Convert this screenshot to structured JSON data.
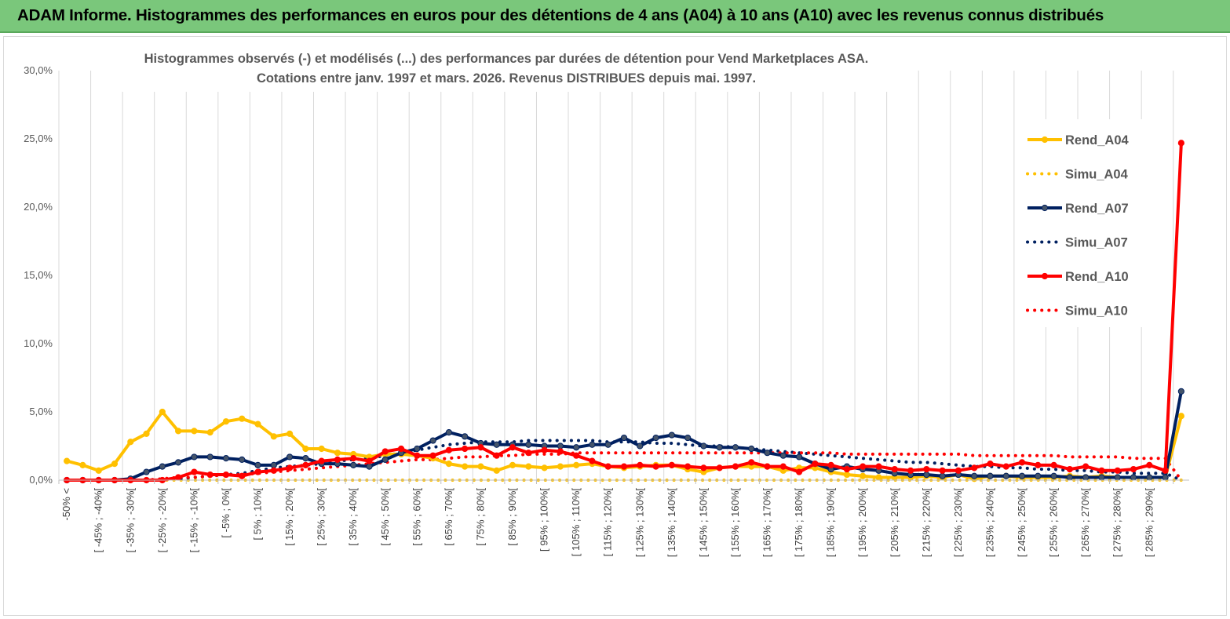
{
  "header": {
    "title": "ADAM Informe. Histogrammes des performances en euros pour des détentions de 4 ans (A04) à 10 ans (A10) avec les revenus connus distribués"
  },
  "chart_data": {
    "type": "line",
    "title_lines": [
      "Histogrammes observés (-) et modélisés (...) des performances par durées de détention pour Vend Marketplaces ASA.",
      "Cotations entre janv. 1997 et mars. 2026. Revenus DISTRIBUES depuis mai. 1997."
    ],
    "ylim": [
      0,
      30
    ],
    "y_ticks": [
      "0,0%",
      "5,0%",
      "10,0%",
      "15,0%",
      "20,0%",
      "25,0%",
      "30,0%"
    ],
    "grid": "vertical",
    "legend_position": "right",
    "x_labels": [
      "-50% <",
      "[ -45% ; -40%[",
      "[ -35% ; -30%[",
      "[ -25% ; -20%[",
      "[ -15% ; -10%[",
      "[ -5% ; 0%[",
      "[ 5% ; 10%[",
      "[ 15% ; 20%[",
      "[ 25% ; 30%[",
      "[ 35% ; 40%[",
      "[ 45% ; 50%[",
      "[ 55% ; 60%[",
      "[ 65% ; 70%[",
      "[ 75% ; 80%[",
      "[ 85% ; 90%[",
      "[ 95% ; 100%[",
      "[ 105% ; 110%[",
      "[ 115% ; 120%[",
      "[ 125% ; 130%[",
      "[ 135% ; 140%[",
      "[ 145% ; 150%[",
      "[ 155% ; 160%[",
      "[ 165% ; 170%[",
      "[ 175% ; 180%[",
      "[ 185% ; 190%[",
      "[ 195% ; 200%[",
      "[ 205% ; 210%[",
      "[ 215% ; 220%[",
      "[ 225% ; 230%[",
      "[ 235% ; 240%[",
      "[ 245% ; 250%[",
      "[ 255% ; 260%[",
      "[ 265% ; 270%[",
      "[ 275% ; 280%[",
      "[ 285% ; 290%["
    ],
    "series": [
      {
        "name": "Rend_A04",
        "color": "#ffc000",
        "style": "solid",
        "values": [
          1.4,
          1.1,
          0.7,
          1.2,
          2.8,
          3.4,
          5.0,
          3.6,
          3.6,
          3.5,
          4.3,
          4.5,
          4.1,
          3.2,
          3.4,
          2.3,
          2.3,
          2.0,
          1.9,
          1.7,
          1.9,
          1.9,
          1.8,
          1.6,
          1.2,
          1.0,
          1.0,
          0.7,
          1.1,
          1.0,
          0.9,
          1.0,
          1.1,
          1.2,
          1.0,
          0.9,
          1.0,
          1.1,
          1.1,
          0.8,
          0.6,
          0.9,
          1.0,
          1.0,
          1.0,
          0.7,
          0.9,
          0.9,
          0.6,
          0.4,
          0.3,
          0.2,
          0.2,
          0.2,
          0.3,
          0.2,
          0.4,
          0.1,
          0.3,
          0.3,
          0.2,
          0.2,
          0.2,
          0.3,
          0.2,
          0.3,
          0.2,
          0.2,
          0.2,
          0.2,
          4.7
        ]
      },
      {
        "name": "Simu_A04",
        "color": "#ffc000",
        "style": "dotted",
        "values": [
          0,
          0,
          0,
          0,
          0,
          0,
          0,
          0,
          0,
          0,
          0,
          0,
          0,
          0,
          0,
          0,
          0,
          0,
          0,
          0,
          0,
          0,
          0,
          0,
          0,
          0,
          0,
          0,
          0,
          0,
          0,
          0,
          0,
          0,
          0,
          0,
          0,
          0,
          0,
          0,
          0,
          0,
          0,
          0,
          0,
          0,
          0,
          0,
          0,
          0,
          0,
          0,
          0,
          0,
          0,
          0,
          0,
          0,
          0,
          0,
          0,
          0,
          0,
          0,
          0,
          0,
          0,
          0,
          0,
          0,
          0
        ]
      },
      {
        "name": "Rend_A07",
        "color": "#002060",
        "style": "solid",
        "values": [
          0,
          0,
          0,
          0,
          0.1,
          0.6,
          1.0,
          1.3,
          1.7,
          1.7,
          1.6,
          1.5,
          1.1,
          1.1,
          1.7,
          1.6,
          1.2,
          1.2,
          1.1,
          1.0,
          1.5,
          2.0,
          2.3,
          2.9,
          3.5,
          3.2,
          2.7,
          2.6,
          2.6,
          2.6,
          2.5,
          2.5,
          2.4,
          2.6,
          2.6,
          3.1,
          2.5,
          3.1,
          3.3,
          3.1,
          2.5,
          2.4,
          2.4,
          2.3,
          2.0,
          1.8,
          1.7,
          1.2,
          0.8,
          1.0,
          0.8,
          0.7,
          0.5,
          0.4,
          0.4,
          0.3,
          0.4,
          0.3,
          0.3,
          0.3,
          0.3,
          0.3,
          0.3,
          0.2,
          0.2,
          0.2,
          0.2,
          0.2,
          0.2,
          0.2,
          6.5
        ]
      },
      {
        "name": "Simu_A07",
        "color": "#002060",
        "style": "dotted",
        "values": [
          0,
          0,
          0,
          0,
          0,
          0,
          0.1,
          0.1,
          0.2,
          0.3,
          0.4,
          0.5,
          0.7,
          0.9,
          1.0,
          1.1,
          1.2,
          1.4,
          1.5,
          1.6,
          1.8,
          2.0,
          2.2,
          2.4,
          2.6,
          2.7,
          2.8,
          2.8,
          2.8,
          2.9,
          2.9,
          2.9,
          2.9,
          2.9,
          2.8,
          2.8,
          2.8,
          2.7,
          2.7,
          2.6,
          2.5,
          2.5,
          2.4,
          2.3,
          2.2,
          2.1,
          2.0,
          1.9,
          1.8,
          1.7,
          1.6,
          1.5,
          1.4,
          1.3,
          1.3,
          1.2,
          1.1,
          1.0,
          1.0,
          0.9,
          0.9,
          0.8,
          0.8,
          0.7,
          0.7,
          0.6,
          0.6,
          0.5,
          0.5,
          0.5,
          0
        ]
      },
      {
        "name": "Rend_A10",
        "color": "#ff0000",
        "style": "solid",
        "values": [
          0,
          0,
          0,
          0,
          0,
          0,
          0,
          0.2,
          0.6,
          0.4,
          0.4,
          0.3,
          0.6,
          0.7,
          0.9,
          1.1,
          1.4,
          1.5,
          1.6,
          1.4,
          2.1,
          2.3,
          1.8,
          1.8,
          2.2,
          2.3,
          2.4,
          1.8,
          2.4,
          2.0,
          2.2,
          2.1,
          1.8,
          1.4,
          1.0,
          1.0,
          1.1,
          1.0,
          1.1,
          1.0,
          0.9,
          0.9,
          1.0,
          1.3,
          1.0,
          1.0,
          0.6,
          1.2,
          1.1,
          0.8,
          1.0,
          1.0,
          0.8,
          0.7,
          0.8,
          0.7,
          0.7,
          0.9,
          1.2,
          1.0,
          1.3,
          1.1,
          1.1,
          0.8,
          1.0,
          0.7,
          0.7,
          0.8,
          1.1,
          0.7,
          24.7
        ]
      },
      {
        "name": "Simu_A10",
        "color": "#ff0000",
        "style": "dotted",
        "values": [
          0,
          0,
          0,
          0,
          0,
          0,
          0.1,
          0.2,
          0.2,
          0.3,
          0.4,
          0.4,
          0.5,
          0.6,
          0.7,
          0.8,
          0.9,
          1.0,
          1.1,
          1.2,
          1.3,
          1.4,
          1.5,
          1.5,
          1.6,
          1.7,
          1.7,
          1.8,
          1.8,
          1.9,
          1.9,
          1.9,
          2.0,
          2.0,
          2.0,
          2.0,
          2.0,
          2.0,
          2.0,
          2.0,
          2.0,
          2.0,
          2.0,
          2.0,
          2.0,
          2.0,
          2.0,
          2.0,
          2.0,
          1.9,
          1.9,
          1.9,
          1.9,
          1.9,
          1.9,
          1.9,
          1.9,
          1.8,
          1.8,
          1.8,
          1.8,
          1.8,
          1.8,
          1.7,
          1.7,
          1.7,
          1.7,
          1.6,
          1.6,
          1.6,
          0
        ]
      }
    ]
  }
}
